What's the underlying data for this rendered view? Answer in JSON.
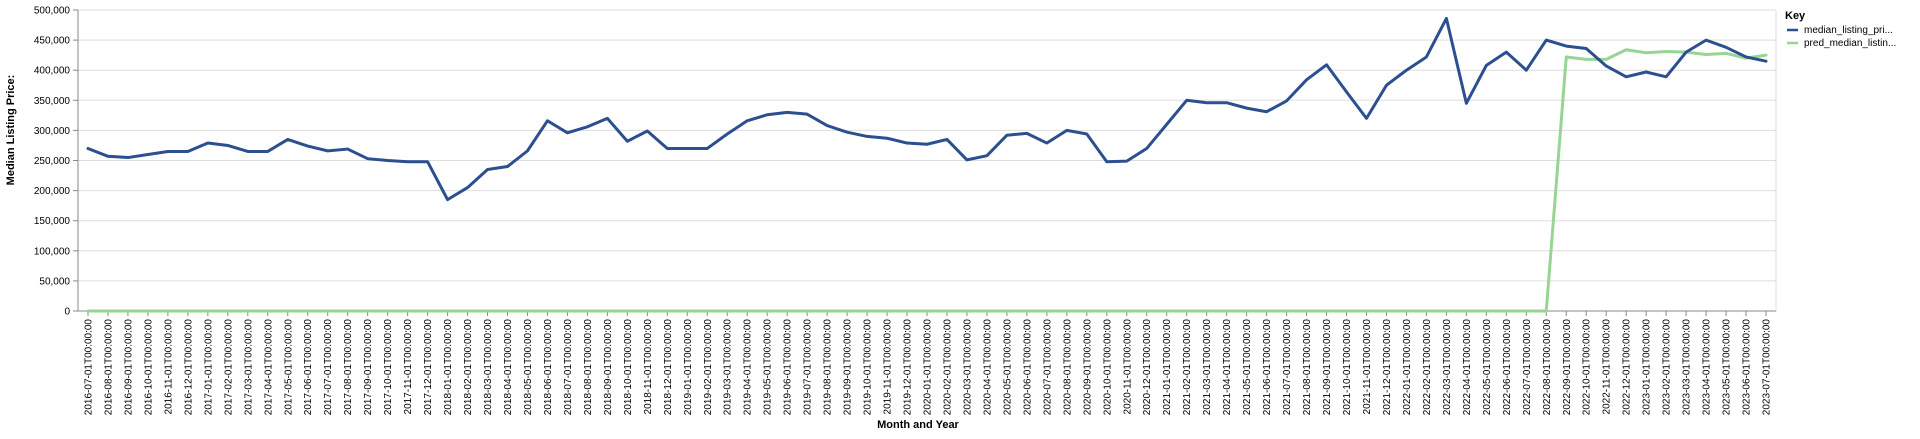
{
  "chart_data": {
    "type": "line",
    "xlabel": "Month and Year",
    "ylabel": "Median Listing Price:",
    "ylim": [
      0,
      500000
    ],
    "yticks": [
      0,
      50000,
      100000,
      150000,
      200000,
      250000,
      300000,
      350000,
      400000,
      450000,
      500000
    ],
    "ytick_labels": [
      "0",
      "50,000",
      "100,000",
      "150,000",
      "200,000",
      "250,000",
      "300,000",
      "350,000",
      "400,000",
      "450,000",
      "500,000"
    ],
    "grid": true,
    "legend": {
      "title": "Key",
      "placement": "right"
    },
    "x": [
      "2016-07-01T00:00:00",
      "2016-08-01T00:00:00",
      "2016-09-01T00:00:00",
      "2016-10-01T00:00:00",
      "2016-11-01T00:00:00",
      "2016-12-01T00:00:00",
      "2017-01-01T00:00:00",
      "2017-02-01T00:00:00",
      "2017-03-01T00:00:00",
      "2017-04-01T00:00:00",
      "2017-05-01T00:00:00",
      "2017-06-01T00:00:00",
      "2017-07-01T00:00:00",
      "2017-08-01T00:00:00",
      "2017-09-01T00:00:00",
      "2017-10-01T00:00:00",
      "2017-11-01T00:00:00",
      "2017-12-01T00:00:00",
      "2018-01-01T00:00:00",
      "2018-02-01T00:00:00",
      "2018-03-01T00:00:00",
      "2018-04-01T00:00:00",
      "2018-05-01T00:00:00",
      "2018-06-01T00:00:00",
      "2018-07-01T00:00:00",
      "2018-08-01T00:00:00",
      "2018-09-01T00:00:00",
      "2018-10-01T00:00:00",
      "2018-11-01T00:00:00",
      "2018-12-01T00:00:00",
      "2019-01-01T00:00:00",
      "2019-02-01T00:00:00",
      "2019-03-01T00:00:00",
      "2019-04-01T00:00:00",
      "2019-05-01T00:00:00",
      "2019-06-01T00:00:00",
      "2019-07-01T00:00:00",
      "2019-08-01T00:00:00",
      "2019-09-01T00:00:00",
      "2019-10-01T00:00:00",
      "2019-11-01T00:00:00",
      "2019-12-01T00:00:00",
      "2020-01-01T00:00:00",
      "2020-02-01T00:00:00",
      "2020-03-01T00:00:00",
      "2020-04-01T00:00:00",
      "2020-05-01T00:00:00",
      "2020-06-01T00:00:00",
      "2020-07-01T00:00:00",
      "2020-08-01T00:00:00",
      "2020-09-01T00:00:00",
      "2020-10-01T00:00:00",
      "2020-11-01T00:00:00",
      "2020-12-01T00:00:00",
      "2021-01-01T00:00:00",
      "2021-02-01T00:00:00",
      "2021-03-01T00:00:00",
      "2021-04-01T00:00:00",
      "2021-05-01T00:00:00",
      "2021-06-01T00:00:00",
      "2021-07-01T00:00:00",
      "2021-08-01T00:00:00",
      "2021-09-01T00:00:00",
      "2021-10-01T00:00:00",
      "2021-11-01T00:00:00",
      "2021-12-01T00:00:00",
      "2022-01-01T00:00:00",
      "2022-02-01T00:00:00",
      "2022-03-01T00:00:00",
      "2022-04-01T00:00:00",
      "2022-05-01T00:00:00",
      "2022-06-01T00:00:00",
      "2022-07-01T00:00:00",
      "2022-08-01T00:00:00",
      "2022-09-01T00:00:00",
      "2022-10-01T00:00:00",
      "2022-11-01T00:00:00",
      "2022-12-01T00:00:00",
      "2023-01-01T00:00:00",
      "2023-02-01T00:00:00",
      "2023-03-01T00:00:00",
      "2023-04-01T00:00:00",
      "2023-05-01T00:00:00",
      "2023-06-01T00:00:00",
      "2023-07-01T00:00:00"
    ],
    "series": [
      {
        "name": "median_listing_pri...",
        "color": "#2b4f8f",
        "values": [
          269900,
          257000,
          254900,
          260000,
          265000,
          265000,
          279000,
          275000,
          265000,
          265000,
          285000,
          274000,
          266000,
          269000,
          253000,
          250000,
          248000,
          248000,
          185000,
          205000,
          235000,
          240000,
          266000,
          316000,
          296000,
          306000,
          320000,
          282000,
          299000,
          270000,
          270000,
          270000,
          294000,
          316000,
          326000,
          330000,
          327000,
          308000,
          297000,
          290000,
          287000,
          279000,
          277000,
          285000,
          251000,
          258000,
          292000,
          295000,
          279000,
          300000,
          294000,
          248000,
          249000,
          270000,
          310000,
          350000,
          346000,
          346000,
          337000,
          331000,
          349000,
          384000,
          409000,
          364000,
          320000,
          375000,
          400000,
          422000,
          486000,
          345000,
          408000,
          430000,
          400000,
          450000,
          440000,
          436000,
          407000,
          389000,
          397000,
          389000,
          430000,
          450000,
          438000,
          422000,
          415000
        ]
      },
      {
        "name": "pred_median_listin...",
        "color": "#98d594",
        "values": [
          0,
          0,
          0,
          0,
          0,
          0,
          0,
          0,
          0,
          0,
          0,
          0,
          0,
          0,
          0,
          0,
          0,
          0,
          0,
          0,
          0,
          0,
          0,
          0,
          0,
          0,
          0,
          0,
          0,
          0,
          0,
          0,
          0,
          0,
          0,
          0,
          0,
          0,
          0,
          0,
          0,
          0,
          0,
          0,
          0,
          0,
          0,
          0,
          0,
          0,
          0,
          0,
          0,
          0,
          0,
          0,
          0,
          0,
          0,
          0,
          0,
          0,
          0,
          0,
          0,
          0,
          0,
          0,
          0,
          0,
          0,
          0,
          0,
          0,
          422000,
          418000,
          418000,
          434000,
          429000,
          431000,
          430000,
          426000,
          428000,
          420000,
          425000
        ]
      }
    ]
  }
}
